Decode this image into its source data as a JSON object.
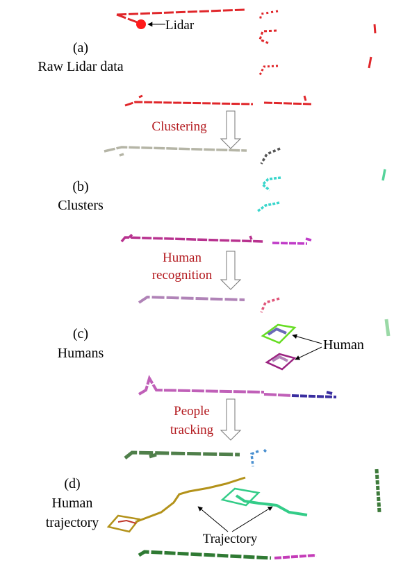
{
  "panels": [
    {
      "id": "a",
      "letter": "(a)",
      "lines": [
        "Raw Lidar data"
      ]
    },
    {
      "id": "b",
      "letter": "(b)",
      "lines": [
        "Clusters"
      ]
    },
    {
      "id": "c",
      "letter": "(c)",
      "lines": [
        "Humans"
      ]
    },
    {
      "id": "d",
      "letter": "(d)",
      "lines": [
        "Human",
        "trajectory"
      ]
    }
  ],
  "steps": [
    {
      "id": "clustering",
      "lines": [
        "Clustering"
      ]
    },
    {
      "id": "recognition",
      "lines": [
        "Human",
        "recognition"
      ]
    },
    {
      "id": "tracking",
      "lines": [
        "People",
        "tracking"
      ]
    }
  ],
  "annotations": {
    "lidar": "Lidar",
    "human": "Human",
    "trajectory": "Trajectory"
  },
  "colors": {
    "raw": "#e0262a",
    "step_text": "#b3191e",
    "lidar_dot": "#ff1a1a",
    "cluster_gray": "#b5b5a6",
    "cluster_cyan": "#3ad6cc",
    "cluster_dark": "#555555",
    "cluster_mint": "#55d39a",
    "cluster_magenta": "#b8328f",
    "cluster_pink": "#c03cc8",
    "human_green": "#66dd22",
    "human_purple": "#9a2280",
    "traj_gold": "#b3921a",
    "traj_mint": "#33cc88",
    "forest": "#3d7a3a"
  }
}
